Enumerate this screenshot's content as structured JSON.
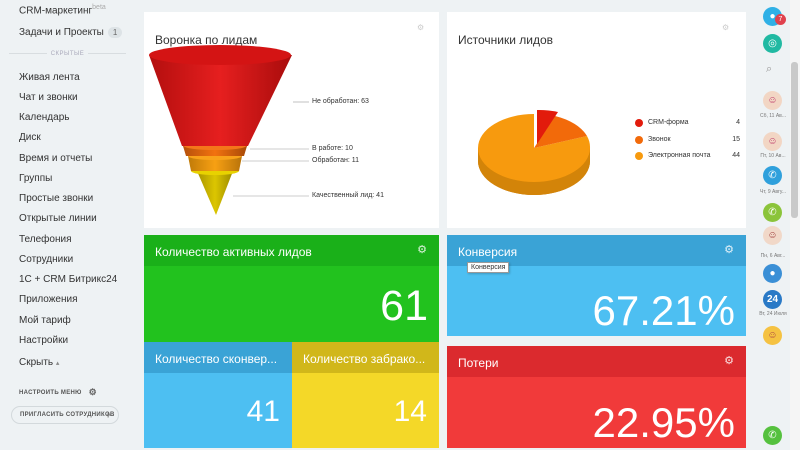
{
  "sidebar": {
    "crm_marketing": "CRM-маркетинг",
    "crm_beta": "beta",
    "tasks": "Задачи и Проекты",
    "tasks_count": "1",
    "hidden_label": "СКРЫТЫЕ",
    "items": [
      "Живая лента",
      "Чат и звонки",
      "Календарь",
      "Диск",
      "Время и отчеты",
      "Группы",
      "Простые звонки",
      "Открытые линии",
      "Телефония",
      "Сотрудники",
      "1С + CRM Битрикс24",
      "Приложения",
      "Мой тариф",
      "Настройки",
      "Скрыть"
    ],
    "hide_arrow": "▴",
    "configure_menu": "НАСТРОИТЬ МЕНЮ",
    "invite": "ПРИГЛАСИТЬ СОТРУДНИКОВ"
  },
  "funnel": {
    "title": "Воронка по лидам",
    "labels": [
      "Не обработан: 63",
      "В работе: 10",
      "Обработан: 11",
      "Качественный лид: 41"
    ],
    "colors": [
      "#e21b1b",
      "#f26a0a",
      "#f59a0a",
      "#d9c300"
    ]
  },
  "sources": {
    "title": "Источники лидов",
    "legend": [
      {
        "label": "CRM-форма",
        "value": "4",
        "color": "#e21b0c"
      },
      {
        "label": "Звонок",
        "value": "15",
        "color": "#f26a0a"
      },
      {
        "label": "Электронная почта",
        "value": "44",
        "color": "#f79a0e"
      }
    ]
  },
  "tiles": {
    "active": {
      "title": "Количество активных лидов",
      "value": "61"
    },
    "conversion": {
      "title": "Конверсия",
      "value": "67.21%",
      "tooltip": "Конверсия"
    },
    "converted": {
      "title": "Количество сконвер...",
      "value": "41"
    },
    "rejected": {
      "title": "Количество забрако...",
      "value": "14"
    },
    "losses": {
      "title": "Потери",
      "value": "22.95%"
    }
  },
  "rightbar": {
    "badge": "7",
    "labels": [
      "Сб, 11 Ав...",
      "Пт, 10 Ав...",
      "Чт, 9 Авгу...",
      "Пн, 6 Авг...",
      "Вт, 24 Июля"
    ],
    "avatar_day": "24"
  },
  "colors": {
    "green_dark": "#1ab019",
    "green": "#22c21e",
    "blue_dark": "#3aa3d6",
    "blue": "#4dbff2",
    "yellow_dark": "#d1b71a",
    "yellow": "#f4d828",
    "red_dark": "#db2a2e",
    "red": "#f13a3a"
  }
}
